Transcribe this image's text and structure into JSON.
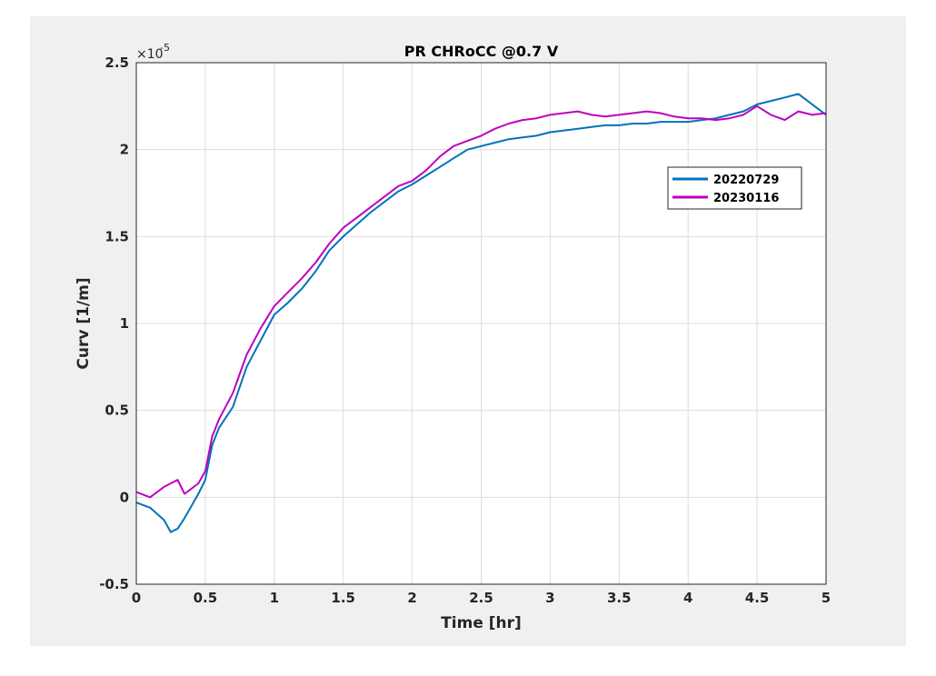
{
  "chart_data": {
    "type": "line",
    "title": "PR CHRoCC @0.7 V",
    "xlabel": "Time [hr]",
    "ylabel": "Curv [1/m]",
    "exponent_label": "×10",
    "exponent_power": "-5",
    "xlim": [
      0,
      5
    ],
    "ylim": [
      -0.5,
      2.5
    ],
    "xticks": [
      "0",
      "0.5",
      "1",
      "1.5",
      "2",
      "2.5",
      "3",
      "3.5",
      "4",
      "4.5",
      "5"
    ],
    "yticks": [
      "-0.5",
      "0",
      "0.5",
      "1",
      "1.5",
      "2",
      "2.5"
    ],
    "grid": true,
    "legend_position": "upper-right",
    "y_scale_factor": 1e-05,
    "series": [
      {
        "name": "20220729",
        "color": "#0072bd",
        "x": [
          0,
          0.1,
          0.2,
          0.25,
          0.3,
          0.35,
          0.4,
          0.45,
          0.5,
          0.55,
          0.6,
          0.7,
          0.8,
          0.9,
          1.0,
          1.1,
          1.2,
          1.3,
          1.4,
          1.5,
          1.6,
          1.7,
          1.8,
          1.9,
          2.0,
          2.1,
          2.2,
          2.3,
          2.4,
          2.5,
          2.6,
          2.7,
          2.8,
          2.9,
          3.0,
          3.1,
          3.2,
          3.3,
          3.4,
          3.5,
          3.6,
          3.7,
          3.8,
          3.9,
          4.0,
          4.1,
          4.2,
          4.3,
          4.4,
          4.5,
          4.6,
          4.7,
          4.8,
          4.9,
          5.0
        ],
        "y": [
          -0.03,
          -0.06,
          -0.13,
          -0.2,
          -0.18,
          -0.12,
          -0.05,
          0.02,
          0.1,
          0.3,
          0.4,
          0.52,
          0.75,
          0.9,
          1.05,
          1.12,
          1.2,
          1.3,
          1.42,
          1.5,
          1.57,
          1.64,
          1.7,
          1.76,
          1.8,
          1.85,
          1.9,
          1.95,
          2.0,
          2.02,
          2.04,
          2.06,
          2.07,
          2.08,
          2.1,
          2.11,
          2.12,
          2.13,
          2.14,
          2.14,
          2.15,
          2.15,
          2.16,
          2.16,
          2.16,
          2.17,
          2.18,
          2.2,
          2.22,
          2.26,
          2.28,
          2.3,
          2.32,
          2.26,
          2.2
        ]
      },
      {
        "name": "20230116",
        "color": "#c000c0",
        "x": [
          0,
          0.1,
          0.2,
          0.25,
          0.3,
          0.35,
          0.4,
          0.45,
          0.5,
          0.55,
          0.6,
          0.7,
          0.8,
          0.9,
          1.0,
          1.1,
          1.2,
          1.3,
          1.4,
          1.5,
          1.6,
          1.7,
          1.8,
          1.9,
          2.0,
          2.1,
          2.2,
          2.3,
          2.4,
          2.5,
          2.6,
          2.7,
          2.8,
          2.9,
          3.0,
          3.1,
          3.2,
          3.3,
          3.4,
          3.5,
          3.6,
          3.7,
          3.8,
          3.9,
          4.0,
          4.1,
          4.2,
          4.3,
          4.4,
          4.5,
          4.6,
          4.7,
          4.8,
          4.9,
          5.0
        ],
        "y": [
          0.03,
          0.0,
          0.06,
          0.08,
          0.1,
          0.02,
          0.05,
          0.08,
          0.15,
          0.35,
          0.45,
          0.6,
          0.82,
          0.97,
          1.1,
          1.18,
          1.26,
          1.35,
          1.46,
          1.55,
          1.61,
          1.67,
          1.73,
          1.79,
          1.82,
          1.88,
          1.96,
          2.02,
          2.05,
          2.08,
          2.12,
          2.15,
          2.17,
          2.18,
          2.2,
          2.21,
          2.22,
          2.2,
          2.19,
          2.2,
          2.21,
          2.22,
          2.21,
          2.19,
          2.18,
          2.18,
          2.17,
          2.18,
          2.2,
          2.25,
          2.2,
          2.17,
          2.22,
          2.2,
          2.21
        ]
      }
    ]
  }
}
